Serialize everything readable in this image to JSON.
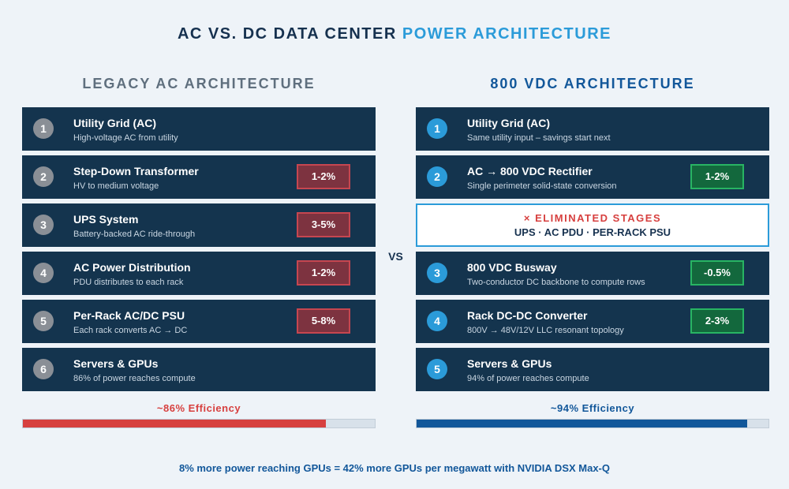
{
  "title": {
    "main": "AC VS. DC DATA CENTER",
    "accent": "POWER ARCHITECTURE"
  },
  "colors": {
    "red": "#d7403f",
    "blue": "#12579a",
    "accent": "#2b9bd9",
    "navy": "#14344e"
  },
  "left": {
    "heading": "LEGACY AC ARCHITECTURE",
    "rows": [
      {
        "num": "1",
        "title": "Utility Grid (AC)",
        "sub": "High-voltage AC from utility",
        "badge": ""
      },
      {
        "num": "2",
        "title": "Step-Down Transformer",
        "sub": "HV to medium voltage",
        "badge": "1-2%"
      },
      {
        "num": "3",
        "title": "UPS System",
        "sub": "Battery-backed AC ride-through",
        "badge": "3-5%"
      },
      {
        "num": "4",
        "title": "AC Power Distribution",
        "sub": "PDU distributes to each rack",
        "badge": "1-2%"
      },
      {
        "num": "5",
        "title": "Per-Rack AC/DC PSU",
        "sub": "Each rack converts AC → DC",
        "badge": "5-8%"
      },
      {
        "num": "6",
        "title": "Servers & GPUs",
        "sub": "86% of power reaches compute",
        "badge": ""
      }
    ],
    "efficiency_label": "~86% Efficiency",
    "efficiency": 0.86
  },
  "right": {
    "heading": "800 VDC ARCHITECTURE",
    "rows": [
      {
        "num": "1",
        "title": "Utility Grid (AC)",
        "sub": "Same utility input – savings start next",
        "badge": ""
      },
      {
        "num": "2",
        "title": "AC → 800 VDC Rectifier",
        "sub": "Single perimeter solid-state conversion",
        "badge": "1-2%"
      },
      {
        "num": "3",
        "title": "800 VDC Busway",
        "sub": "Two-conductor DC backbone to compute rows",
        "badge": "-0.5%"
      },
      {
        "num": "4",
        "title": "Rack DC-DC Converter",
        "sub": "800V → 48V/12V LLC resonant topology",
        "badge": "2-3%"
      },
      {
        "num": "5",
        "title": "Servers & GPUs",
        "sub": "94% of power reaches compute",
        "badge": ""
      }
    ],
    "eliminated_title": "× ELIMINATED STAGES",
    "eliminated_items": "UPS · AC PDU · PER-RACK PSU",
    "efficiency_label": "~94% Efficiency",
    "efficiency": 0.94
  },
  "vs": "VS",
  "footer": "8% more power reaching GPUs = 42% more GPUs per megawatt with NVIDIA DSX Max-Q"
}
